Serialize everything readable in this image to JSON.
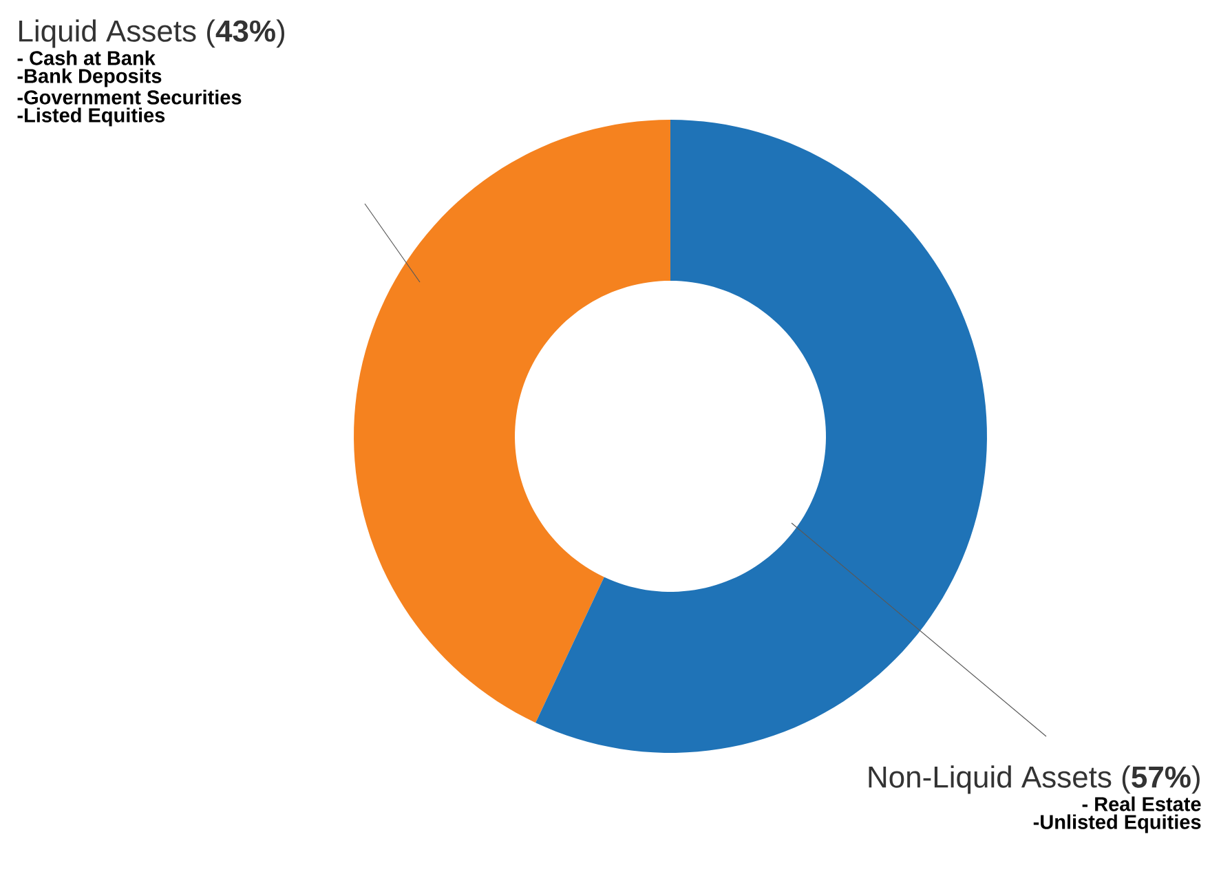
{
  "chart_data": {
    "type": "donut",
    "categories": [
      "Liquid Assets (**43%**)",
      "Non-Liquid Assets (**57%**)"
    ],
    "values": [
      43,
      57
    ],
    "colors": [
      "#f5821f",
      "#1f73b7"
    ],
    "annotations": [
      "- Cash at Bank",
      "-Bank Deposits",
      "-Government Securities",
      "-Listed Equities",
      "- Real Estate",
      "-Unlisted Equities"
    ]
  }
}
